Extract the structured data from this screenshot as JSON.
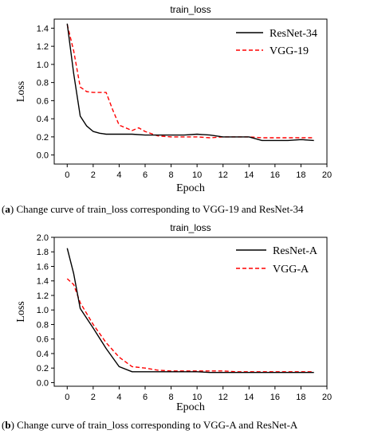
{
  "captions": [
    {
      "letter": "a",
      "text": "Change curve of train_loss corresponding to VGG-19 and ResNet-34"
    },
    {
      "letter": "b",
      "text": "Change curve of train_loss corresponding to VGG-A and ResNet-A"
    }
  ],
  "chart_data": [
    {
      "type": "line",
      "title": "train_loss",
      "xlabel": "Epoch",
      "ylabel": "Loss",
      "xlim": [
        -1,
        20
      ],
      "ylim": [
        -0.1,
        1.5
      ],
      "xticks": [
        "0",
        "2",
        "4",
        "6",
        "8",
        "10",
        "12",
        "14",
        "16",
        "18",
        "20"
      ],
      "yticks": [
        "0.0",
        "0.2",
        "0.4",
        "0.6",
        "0.8",
        "1.0",
        "1.2",
        "1.4"
      ],
      "grid": false,
      "legend": "top-right",
      "series": [
        {
          "name": "ResNet-34",
          "color": "#000000",
          "dash": "solid",
          "x": [
            0,
            0.5,
            1,
            1.5,
            2,
            2.5,
            3,
            4,
            5,
            6,
            7,
            8,
            9,
            10,
            11,
            12,
            13,
            14,
            15,
            16,
            17,
            18,
            19
          ],
          "y": [
            1.45,
            0.9,
            0.43,
            0.32,
            0.26,
            0.24,
            0.23,
            0.23,
            0.23,
            0.22,
            0.22,
            0.22,
            0.22,
            0.23,
            0.22,
            0.2,
            0.2,
            0.2,
            0.16,
            0.16,
            0.16,
            0.17,
            0.16
          ]
        },
        {
          "name": "VGG-19",
          "color": "#ff0000",
          "dash": "dashed",
          "x": [
            0,
            0.5,
            1,
            1.5,
            2,
            2.5,
            3,
            3.5,
            4,
            5,
            5.5,
            6,
            7,
            8,
            9,
            10,
            11,
            12,
            13,
            14,
            15,
            16,
            17,
            18,
            19
          ],
          "y": [
            1.44,
            1.15,
            0.75,
            0.7,
            0.69,
            0.69,
            0.69,
            0.5,
            0.33,
            0.27,
            0.3,
            0.26,
            0.21,
            0.2,
            0.2,
            0.2,
            0.19,
            0.2,
            0.2,
            0.2,
            0.19,
            0.19,
            0.19,
            0.19,
            0.19
          ]
        }
      ]
    },
    {
      "type": "line",
      "title": "train_loss",
      "xlabel": "Epoch",
      "ylabel": "Loss",
      "xlim": [
        -1,
        20
      ],
      "ylim": [
        -0.05,
        2.0
      ],
      "xticks": [
        "0",
        "2",
        "4",
        "6",
        "8",
        "10",
        "12",
        "14",
        "16",
        "18",
        "20"
      ],
      "yticks": [
        "0.0",
        "0.2",
        "0.4",
        "0.6",
        "0.8",
        "1.0",
        "1.2",
        "1.4",
        "1.6",
        "1.8",
        "2.0"
      ],
      "grid": false,
      "legend": "top-right",
      "series": [
        {
          "name": "ResNet-A",
          "color": "#000000",
          "dash": "solid",
          "x": [
            0,
            0.5,
            1,
            2,
            3,
            4,
            5,
            6,
            7,
            8,
            9,
            10,
            11,
            12,
            13,
            14,
            15,
            16,
            17,
            18,
            19
          ],
          "y": [
            1.85,
            1.5,
            1.02,
            0.75,
            0.47,
            0.22,
            0.15,
            0.15,
            0.15,
            0.15,
            0.15,
            0.15,
            0.14,
            0.14,
            0.14,
            0.14,
            0.14,
            0.14,
            0.14,
            0.14,
            0.14
          ]
        },
        {
          "name": "VGG-A",
          "color": "#ff0000",
          "dash": "dashed",
          "x": [
            0,
            0.5,
            1,
            2,
            3,
            4,
            5,
            6,
            7,
            8,
            9,
            10,
            11,
            12,
            13,
            14,
            15,
            16,
            17,
            18,
            19
          ],
          "y": [
            1.43,
            1.35,
            1.1,
            0.8,
            0.55,
            0.35,
            0.22,
            0.2,
            0.17,
            0.16,
            0.16,
            0.16,
            0.16,
            0.16,
            0.15,
            0.15,
            0.15,
            0.15,
            0.15,
            0.15,
            0.15
          ]
        }
      ]
    }
  ]
}
